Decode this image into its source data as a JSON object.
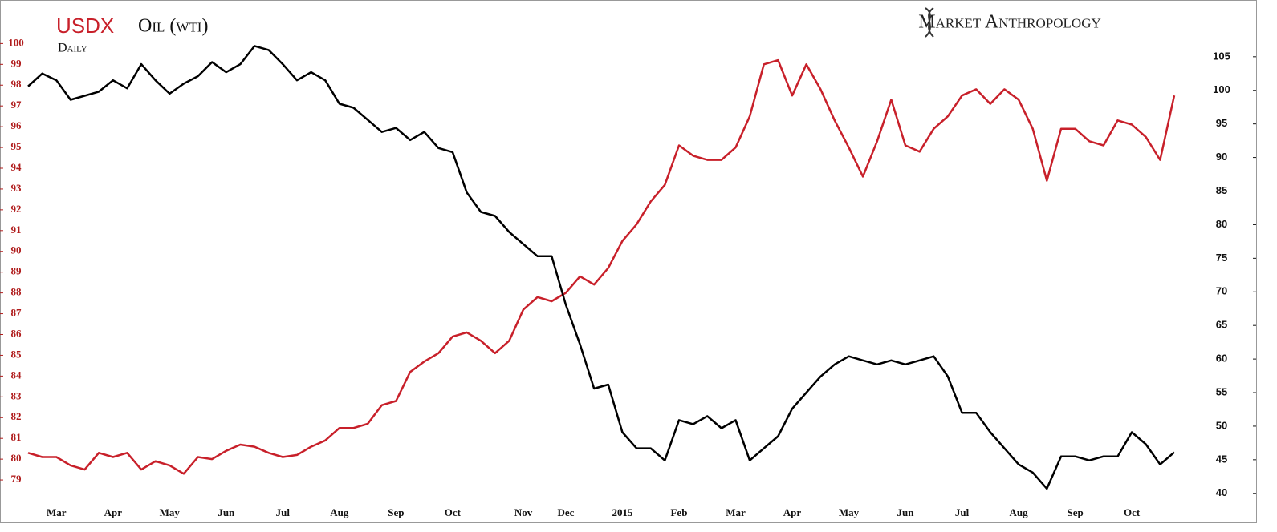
{
  "chart_data": {
    "type": "line",
    "title": "USDX",
    "subtitle": "Daily",
    "annotation": "Market Anthropology",
    "categories": [
      null,
      null,
      "Mar",
      null,
      null,
      null,
      "Apr",
      null,
      null,
      null,
      "May",
      null,
      null,
      null,
      "Jun",
      null,
      null,
      null,
      "Jul",
      null,
      null,
      null,
      "Aug",
      null,
      null,
      null,
      "Sep",
      null,
      null,
      null,
      "Oct",
      null,
      null,
      null,
      null,
      "Nov",
      null,
      null,
      "Dec",
      null,
      null,
      null,
      "2015",
      null,
      null,
      null,
      "Feb",
      null,
      null,
      null,
      "Mar",
      null,
      null,
      null,
      "Apr",
      null,
      null,
      null,
      "May",
      null,
      null,
      null,
      "Jun",
      null,
      null,
      null,
      "Jul",
      null,
      null,
      null,
      "Aug",
      null,
      null,
      null,
      "Sep",
      null,
      null,
      null,
      "Oct",
      null,
      null,
      null
    ],
    "series": [
      {
        "name": "USDX",
        "color": "#c8202a",
        "axis": "y",
        "values": [
          80.3,
          80.1,
          80.1,
          79.7,
          79.5,
          80.3,
          80.1,
          80.3,
          79.5,
          79.9,
          79.7,
          79.3,
          80.1,
          80,
          80.4,
          80.7,
          80.6,
          80.3,
          80.1,
          80.2,
          80.6,
          80.9,
          81.5,
          81.5,
          81.7,
          82.6,
          82.8,
          84.2,
          84.7,
          85.1,
          85.9,
          86.1,
          85.7,
          85.1,
          85.7,
          87.2,
          87.8,
          87.6,
          88,
          88.8,
          88.4,
          89.2,
          90.5,
          91.3,
          92.4,
          93.2,
          95.1,
          94.6,
          94.4,
          94.4,
          95,
          96.5,
          99,
          99.2,
          97.5,
          99,
          97.8,
          96.3,
          95,
          93.6,
          95.3,
          97.3,
          95.1,
          94.8,
          95.9,
          96.5,
          97.5,
          97.8,
          97.1,
          97.8,
          97.3,
          95.9,
          93.4,
          95.9,
          95.9,
          95.3,
          95.1,
          96.3,
          96.1,
          95.5,
          94.4,
          97.5
        ]
      },
      {
        "name": "Oil (wti)",
        "color": "#000000",
        "axis": "y2",
        "values": [
          100.6,
          102.5,
          101.5,
          98.6,
          99.2,
          99.8,
          101.5,
          100.3,
          103.9,
          101.5,
          99.5,
          101,
          102.1,
          104.2,
          102.7,
          103.9,
          106.6,
          106,
          103.9,
          101.5,
          102.7,
          101.5,
          98,
          97.4,
          95.6,
          93.8,
          94.4,
          92.6,
          93.8,
          91.4,
          90.8,
          84.8,
          81.9,
          81.3,
          78.9,
          77.1,
          75.3,
          75.3,
          68.1,
          62.2,
          55.6,
          56.2,
          49.1,
          46.7,
          46.7,
          44.9,
          50.9,
          50.3,
          51.5,
          49.7,
          50.9,
          44.9,
          46.7,
          48.5,
          52.6,
          55,
          57.4,
          59.2,
          60.4,
          59.8,
          59.2,
          59.8,
          59.2,
          59.8,
          60.4,
          57.4,
          52,
          52,
          49.1,
          46.7,
          44.3,
          43.1,
          40.7,
          45.5,
          45.5,
          44.9,
          45.5,
          45.5,
          49.1,
          47.3,
          44.3,
          46.1
        ]
      }
    ],
    "ylim": [
      78,
      100.4
    ],
    "yticks": [
      79,
      80,
      81,
      82,
      83,
      84,
      85,
      86,
      87,
      88,
      89,
      90,
      91,
      92,
      93,
      94,
      95,
      96,
      97,
      98,
      99,
      100
    ],
    "y2lim": [
      38.9,
      108.2
    ],
    "y2ticks": [
      40,
      45,
      50,
      55,
      60,
      65,
      70,
      75,
      80,
      85,
      90,
      95,
      100,
      105
    ],
    "grid": false
  }
}
